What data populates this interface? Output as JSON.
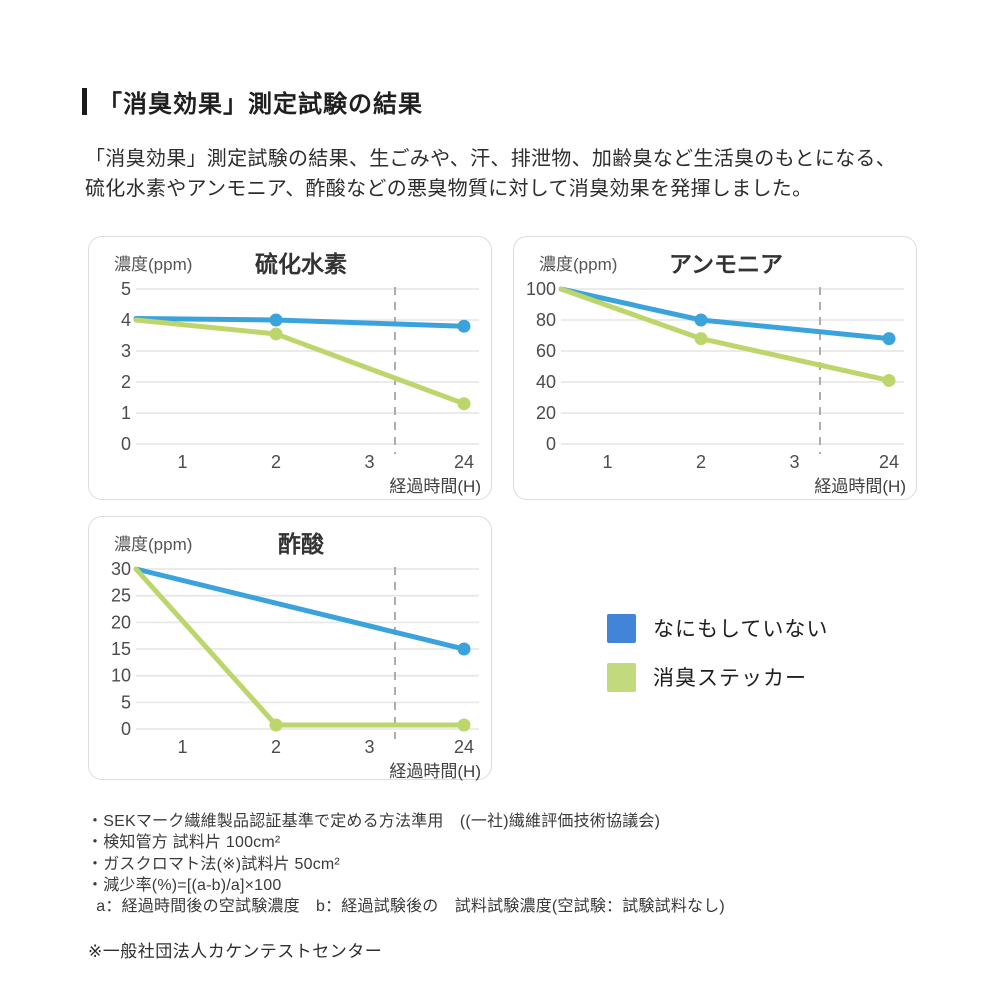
{
  "page": {
    "title": "「消臭効果」測定試験の結果",
    "description_lines": [
      "「消臭効果」測定試験の結果、生ごみや、汗、排泄物、加齢臭など生活臭のもとになる、",
      "硫化水素やアンモニア、酢酸などの悪臭物質に対して消臭効果を発揮しました。"
    ]
  },
  "colors": {
    "line_blue": "#3ba3dc",
    "line_green": "#bdd66c",
    "legend_blue": "#4285d8",
    "legend_green": "#c3da7c",
    "gridline": "#e8e8e8",
    "break_line": "#adadad",
    "tick_text": "#4c4c4c",
    "title_text": "#333333"
  },
  "legend": {
    "items": [
      {
        "label": "なにもしていない",
        "color": "#4285d8"
      },
      {
        "label": "消臭ステッカー",
        "color": "#c3da7c"
      }
    ]
  },
  "footnotes": [
    "・SEKマーク繊維製品認証基準で定める方法準用　((一社)繊維評価技術協議会)",
    "・検知管方 試料片 100cm²",
    "・ガスクロマト法(※)試料片 50cm²",
    "・減少率(%)=[(a-b)/a]×100",
    "  a：経過時間後の空試験濃度　b：経過試験後の　試料試験濃度(空試験：試験試料なし)"
  ],
  "source_note": "※一般社団法人カケンテストセンター",
  "chart_data": [
    {
      "type": "line",
      "title": "硫化水素",
      "y_unit_label": "濃度(ppm)",
      "x_axis_label": "経過時間(H)",
      "x_ticks": [
        "1",
        "2",
        "3",
        "24"
      ],
      "y_ticks": [
        5,
        4,
        3,
        2,
        1,
        0
      ],
      "y_max": 5,
      "axis_break_between": [
        "3",
        "24"
      ],
      "grid": true,
      "series": [
        {
          "name": "なにもしていない",
          "color": "#3ba3dc",
          "x": [
            "0",
            "2",
            "24"
          ],
          "values": [
            4.05,
            4.0,
            3.8
          ],
          "dots": [
            "2",
            "24"
          ]
        },
        {
          "name": "消臭ステッカー",
          "color": "#bdd66c",
          "x": [
            "0",
            "2",
            "24"
          ],
          "values": [
            4.0,
            3.55,
            1.3
          ],
          "dots": [
            "2",
            "24"
          ]
        }
      ]
    },
    {
      "type": "line",
      "title": "アンモニア",
      "y_unit_label": "濃度(ppm)",
      "x_axis_label": "経過時間(H)",
      "x_ticks": [
        "1",
        "2",
        "3",
        "24"
      ],
      "y_ticks": [
        100,
        80,
        60,
        40,
        20,
        0
      ],
      "y_max": 100,
      "axis_break_between": [
        "3",
        "24"
      ],
      "grid": true,
      "series": [
        {
          "name": "なにもしていない",
          "color": "#3ba3dc",
          "x": [
            "0",
            "2",
            "24"
          ],
          "values": [
            100,
            80,
            68
          ],
          "dots": [
            "2",
            "24"
          ]
        },
        {
          "name": "消臭ステッカー",
          "color": "#bdd66c",
          "x": [
            "0",
            "2",
            "24"
          ],
          "values": [
            100,
            68,
            41
          ],
          "dots": [
            "2",
            "24"
          ]
        }
      ]
    },
    {
      "type": "line",
      "title": "酢酸",
      "y_unit_label": "濃度(ppm)",
      "x_axis_label": "経過時間(H)",
      "x_ticks": [
        "1",
        "2",
        "3",
        "24"
      ],
      "y_ticks": [
        30,
        25,
        20,
        15,
        10,
        5,
        0
      ],
      "y_max": 30,
      "axis_break_between": [
        "3",
        "24"
      ],
      "grid": true,
      "series": [
        {
          "name": "なにもしていない",
          "color": "#3ba3dc",
          "x": [
            "0",
            "24"
          ],
          "values": [
            30,
            15
          ],
          "dots": [
            "24"
          ]
        },
        {
          "name": "消臭ステッカー",
          "color": "#bdd66c",
          "x": [
            "0",
            "2",
            "24"
          ],
          "values": [
            30,
            0,
            0
          ],
          "dots": [
            "2",
            "24"
          ]
        }
      ]
    }
  ]
}
